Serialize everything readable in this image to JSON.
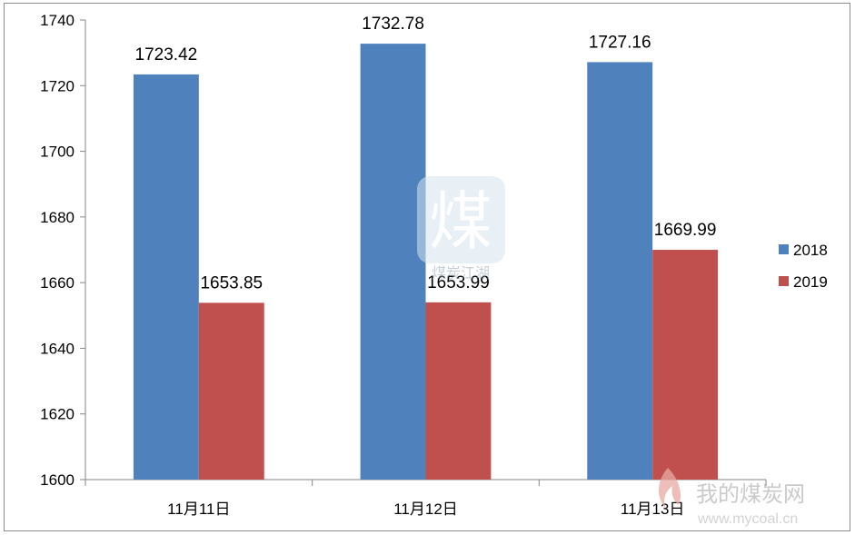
{
  "chart_data": {
    "type": "bar",
    "categories": [
      "11月11日",
      "11月12日",
      "11月13日"
    ],
    "series": [
      {
        "name": "2018",
        "values": [
          1723.42,
          1732.78,
          1727.16
        ],
        "color": "#4f81bd"
      },
      {
        "name": "2019",
        "values": [
          1653.85,
          1653.99,
          1669.99
        ],
        "color": "#c0504d"
      }
    ],
    "data_labels": [
      [
        "1723.42",
        "1732.78",
        "1727.16"
      ],
      [
        "1653.85",
        "1653.99",
        "1669.99"
      ]
    ],
    "ylim": [
      1600,
      1740
    ],
    "yticks": [
      1600,
      1620,
      1640,
      1660,
      1680,
      1700,
      1720,
      1740
    ],
    "legend_position": "right",
    "grid": false
  },
  "watermarks": {
    "center_glyph": "煤",
    "center_text": "煤炭江湖",
    "corner_text": "我的煤炭网",
    "corner_url": "www.mycoal.cn"
  }
}
